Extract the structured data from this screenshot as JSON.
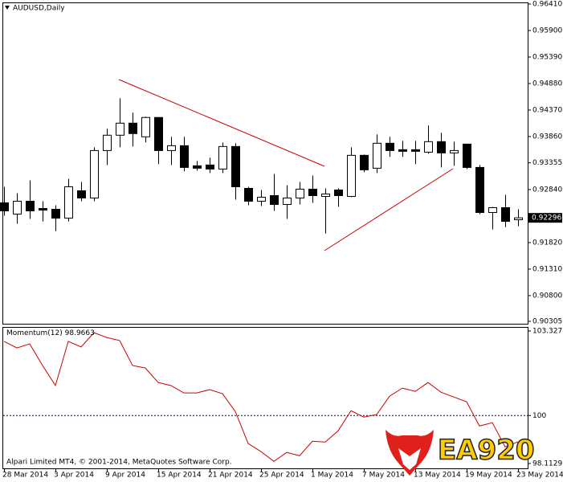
{
  "chart_data": [
    {
      "type": "candlestick",
      "title": "AUDUSD,Daily",
      "categories": [
        "28 Mar 2014",
        null,
        null,
        null,
        "3 Apr 2014",
        null,
        null,
        null,
        "9 Apr 2014",
        null,
        null,
        null,
        "15 Apr 2014",
        null,
        null,
        null,
        "21 Apr 2014",
        null,
        null,
        null,
        "25 Apr 2014",
        null,
        null,
        null,
        "1 May 2014",
        null,
        null,
        null,
        "7 May 2014",
        null,
        null,
        null,
        "13 May 2014",
        null,
        null,
        null,
        "19 May 2014",
        null,
        null,
        null,
        "23 May 2014"
      ],
      "open": [
        0.92585,
        0.92368,
        0.92616,
        0.92476,
        0.92461,
        0.9229,
        0.92817,
        0.92678,
        0.93591,
        0.93886,
        0.94118,
        0.93855,
        0.94227,
        0.93591,
        0.93684,
        0.93297,
        0.93313,
        0.93235,
        0.93669,
        0.92863,
        0.92616,
        0.92724,
        0.92554,
        0.92678,
        0.92848,
        0.92708,
        0.92832,
        0.92708,
        0.93499,
        0.93251,
        0.93731,
        0.93607,
        0.93607,
        0.9356,
        0.93762,
        0.93545,
        0.93715,
        0.93266,
        0.92399,
        0.92492,
        0.92259
      ],
      "high": [
        0.92894,
        0.9277,
        0.93018,
        0.92616,
        0.92538,
        0.93049,
        0.92987,
        0.93653,
        0.9401,
        0.94598,
        0.94319,
        0.94242,
        0.94227,
        0.93855,
        0.93855,
        0.9339,
        0.93452,
        0.93746,
        0.93731,
        0.92894,
        0.92832,
        0.93142,
        0.92925,
        0.92987,
        0.93111,
        0.92863,
        0.92863,
        0.93653,
        0.93514,
        0.93901,
        0.93855,
        0.93777,
        0.93777,
        0.94072,
        0.93932,
        0.93762,
        0.93715,
        0.93313,
        0.92507,
        0.92739,
        0.92461
      ],
      "low": [
        0.92337,
        0.92182,
        0.92275,
        0.92228,
        0.92042,
        0.92228,
        0.92616,
        0.92616,
        0.93313,
        0.93653,
        0.93669,
        0.93746,
        0.93328,
        0.93313,
        0.93189,
        0.93204,
        0.93158,
        0.93158,
        0.92647,
        0.92538,
        0.92523,
        0.9243,
        0.92275,
        0.92554,
        0.92585,
        0.91996,
        0.92507,
        0.92693,
        0.93173,
        0.93158,
        0.93468,
        0.93468,
        0.93328,
        0.93529,
        0.93266,
        0.93297,
        0.93235,
        0.92368,
        0.92073,
        0.9212,
        0.92135
      ],
      "close": [
        0.9243,
        0.92616,
        0.9243,
        0.92445,
        0.9229,
        0.92894,
        0.92678,
        0.93591,
        0.93886,
        0.94118,
        0.93917,
        0.94227,
        0.93591,
        0.93684,
        0.93266,
        0.93251,
        0.93235,
        0.93669,
        0.92894,
        0.92616,
        0.92693,
        0.92554,
        0.92678,
        0.92848,
        0.92724,
        0.92755,
        0.92724,
        0.93499,
        0.9322,
        0.93731,
        0.93591,
        0.93576,
        0.93576,
        0.93762,
        0.93545,
        0.93591,
        0.93266,
        0.92399,
        0.92492,
        0.92228,
        0.92296
      ],
      "up_color": "#ffffff",
      "down_color": "#000000",
      "ylim": [
        0.90305,
        0.9641
      ],
      "yticks": [
        {
          "value": 0.9641,
          "label": "0.96410"
        },
        {
          "value": 0.959,
          "label": "0.95900"
        },
        {
          "value": 0.9539,
          "label": "0.95390"
        },
        {
          "value": 0.9488,
          "label": "0.94880"
        },
        {
          "value": 0.9437,
          "label": "0.94370"
        },
        {
          "value": 0.9386,
          "label": "0.93860"
        },
        0.93355,
        {
          "value": 0.9284,
          "label": "0.92840"
        },
        {
          "value": 0.9182,
          "label": "0.91820"
        },
        {
          "value": 0.9131,
          "label": "0.91310"
        },
        {
          "value": 0.908,
          "label": "0.90800"
        },
        0.90305
      ]
    },
    {
      "type": "line",
      "title": "Momentum(12)",
      "color": "#cc0000",
      "values": [
        102.92,
        102.66,
        102.82,
        101.97,
        101.18,
        102.92,
        102.7,
        103.26,
        103.07,
        102.95,
        101.97,
        101.87,
        101.3,
        101.18,
        100.89,
        100.89,
        101.02,
        100.86,
        100.16,
        98.9,
        98.58,
        98.2,
        98.55,
        98.42,
        98.99,
        98.96,
        99.4,
        100.19,
        99.94,
        100.04,
        100.76,
        101.08,
        100.95,
        101.3,
        100.92,
        100.73,
        100.54,
        99.59,
        99.72,
        98.77,
        98.9663
      ],
      "ylim": [
        98.1129,
        103.3277
      ],
      "yticks": [
        103.3277,
        100,
        98.1129
      ],
      "level_color": "#000080"
    }
  ],
  "copyright": "Alpari Limited MT4, © 2001-2014, MetaQuotes Software Corp.",
  "watermark": "EA920"
}
